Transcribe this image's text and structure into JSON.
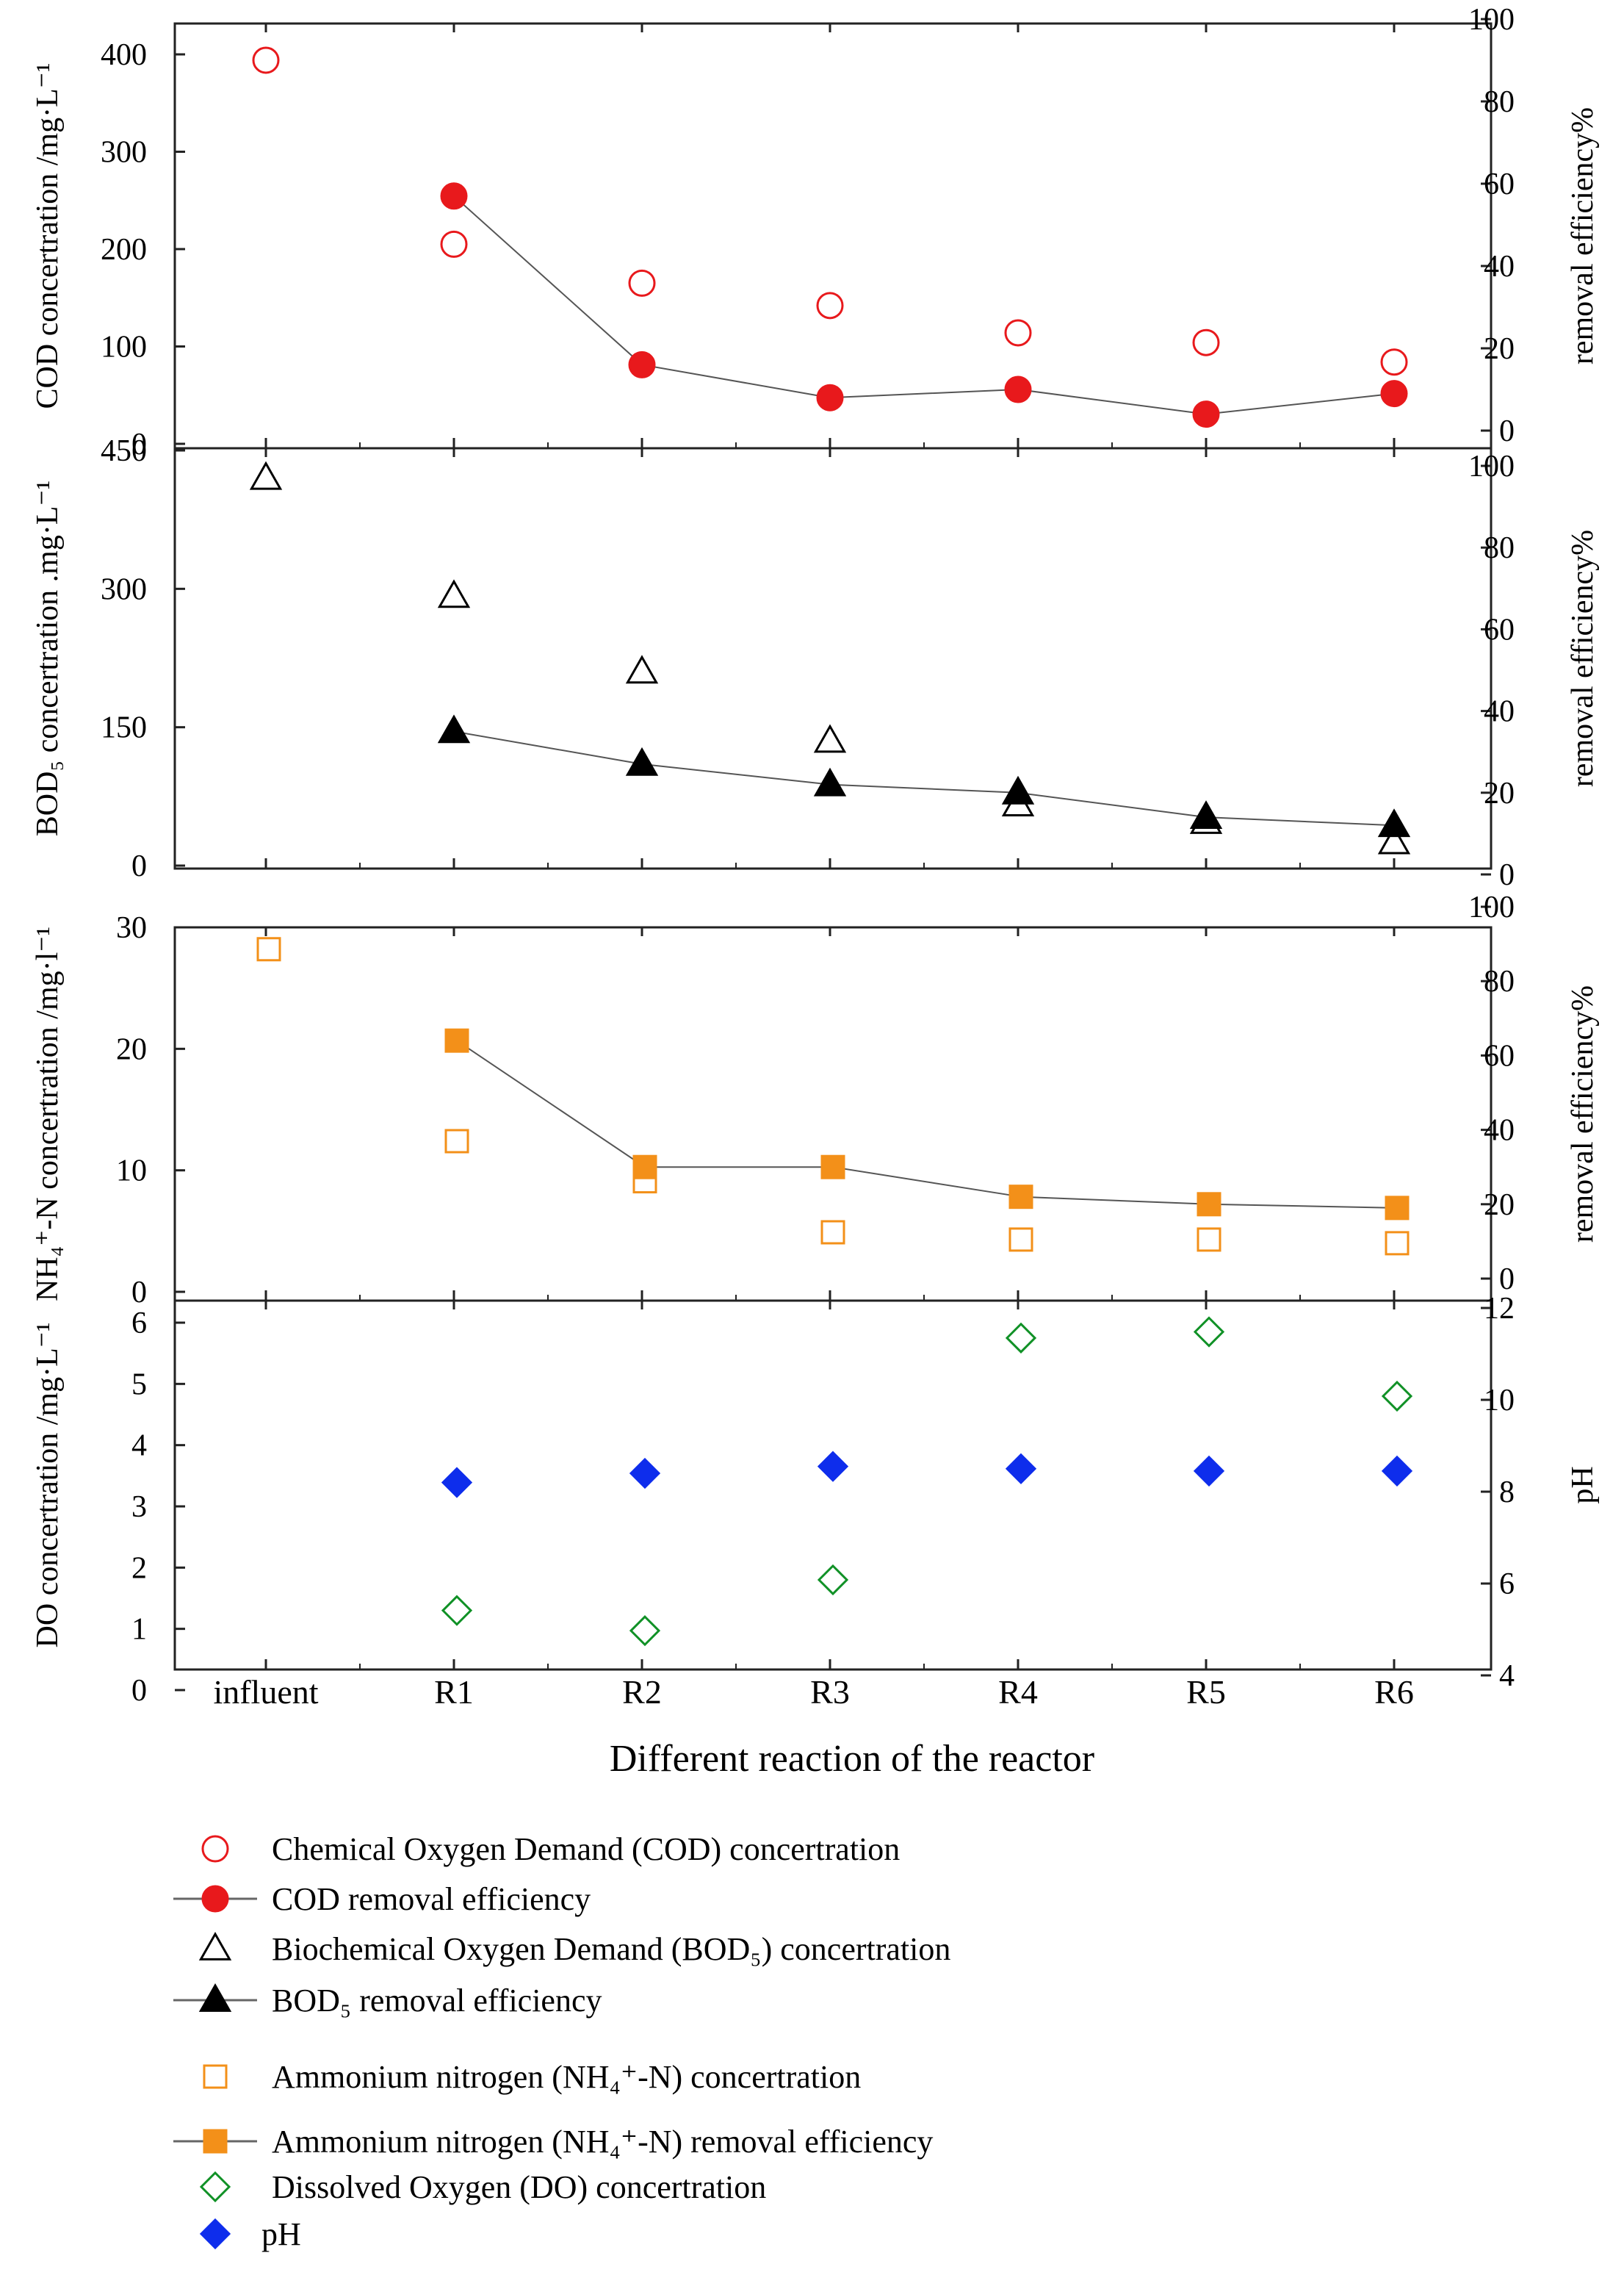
{
  "chart_data": {
    "type": "multi-panel scatter/line",
    "categories": [
      "influent",
      "R1",
      "R2",
      "R3",
      "R4",
      "R5",
      "R6"
    ],
    "xlabel": "Different reaction of the reactor",
    "panels": [
      {
        "id": "cod",
        "left_axis": {
          "label": "COD concertration /mg·L⁻¹",
          "range": [
            0,
            450
          ],
          "ticks": [
            0,
            100,
            200,
            300,
            400
          ]
        },
        "right_axis": {
          "label": "removal efficiency%",
          "range": [
            0,
            100
          ],
          "ticks": [
            0,
            20,
            40,
            60,
            80,
            100
          ]
        },
        "series": [
          {
            "name": "Chemical Oxygen Demand (COD) concertration",
            "axis": "left",
            "marker": "circle-open",
            "color": "#e8191c",
            "line": false,
            "values": [
              394,
              205,
              165,
              142,
              114,
              104,
              84
            ]
          },
          {
            "name": "COD removal efficiency",
            "axis": "right",
            "marker": "circle-filled",
            "color": "#e8191c",
            "line": true,
            "values": [
              null,
              57,
              16,
              8,
              10,
              4,
              9
            ]
          }
        ]
      },
      {
        "id": "bod",
        "left_axis": {
          "label": "BOD₅ concertration .mg·L⁻¹",
          "range": [
            0,
            450
          ],
          "ticks": [
            0,
            150,
            300,
            450
          ]
        },
        "right_axis": {
          "label": "removal efficiency%",
          "range": [
            0,
            100
          ],
          "ticks": [
            0,
            20,
            40,
            60,
            80,
            100
          ]
        },
        "series": [
          {
            "name": "Biochemical Oxygen Demand (BOD₅) concertration",
            "axis": "left",
            "marker": "triangle-open",
            "color": "#000000",
            "line": false,
            "values": [
              420,
              292,
              210,
              135,
              66,
              47,
              25
            ]
          },
          {
            "name": "BOD₅ removal efficiency",
            "axis": "right",
            "marker": "triangle-filled",
            "color": "#000000",
            "line": true,
            "values": [
              null,
              35,
              27,
              22,
              20,
              14,
              12
            ]
          }
        ]
      },
      {
        "id": "nh4",
        "left_axis": {
          "label": "NH₄⁺-N concertration /mg·l⁻¹",
          "range": [
            0,
            30
          ],
          "ticks": [
            0,
            10,
            20,
            30
          ]
        },
        "right_axis": {
          "label": "removal efficiency%",
          "range": [
            0,
            100
          ],
          "ticks": [
            0,
            20,
            40,
            60,
            80,
            100
          ]
        },
        "series": [
          {
            "name": "Ammonium nitrogen (NH₄⁺-N) concertration",
            "axis": "left",
            "marker": "square-open",
            "color": "#f39019",
            "line": false,
            "values": [
              28.2,
              12.4,
              9.1,
              4.9,
              4.3,
              4.3,
              4.0
            ]
          },
          {
            "name": "Ammonium nitrogen (NH₄⁺-N) removal efficiency",
            "axis": "right",
            "marker": "square-filled",
            "color": "#f39019",
            "line": true,
            "values": [
              null,
              64,
              30,
              30,
              22,
              20,
              19
            ]
          }
        ]
      },
      {
        "id": "do",
        "left_axis": {
          "label": "DO concertration /mg·L⁻¹",
          "range": [
            0,
            6.5
          ],
          "ticks": [
            0,
            1,
            2,
            3,
            4,
            5,
            6
          ]
        },
        "right_axis": {
          "label": "pH",
          "range": [
            4,
            12
          ],
          "ticks": [
            4,
            6,
            8,
            10,
            12
          ]
        },
        "series": [
          {
            "name": "Dissolved Oxygen (DO) concertration",
            "axis": "left",
            "marker": "diamond-open",
            "color": "#109126",
            "line": false,
            "values": [
              null,
              1.3,
              0.97,
              1.8,
              5.75,
              5.85,
              4.8
            ]
          },
          {
            "name": "pH",
            "axis": "right",
            "marker": "diamond-filled",
            "color": "#0e2dec",
            "line": false,
            "values": [
              null,
              8.2,
              8.4,
              8.55,
              8.5,
              8.45,
              8.45
            ]
          }
        ]
      }
    ],
    "legend": {
      "placement": "bottom",
      "entries": [
        {
          "text": "Chemical Oxygen Demand (COD) concertration",
          "marker": "circle-open",
          "color": "#e8191c",
          "line": false
        },
        {
          "text": "COD removal efficiency",
          "marker": "circle-filled",
          "color": "#e8191c",
          "line": true
        },
        {
          "text": "Biochemical Oxygen Demand (BOD₅) concertration",
          "marker": "triangle-open",
          "color": "#000000",
          "line": false
        },
        {
          "text": "BOD₅ removal efficiency",
          "marker": "triangle-filled",
          "color": "#000000",
          "line": true
        },
        {
          "text": "Ammonium nitrogen (NH₄⁺-N) concertration",
          "marker": "square-open",
          "color": "#f39019",
          "line": false
        },
        {
          "text": "Ammonium nitrogen (NH₄⁺-N) removal efficiency",
          "marker": "square-filled",
          "color": "#f39019",
          "line": true
        },
        {
          "text": "Dissolved Oxygen (DO) concertration",
          "marker": "diamond-open",
          "color": "#109126",
          "line": false
        },
        {
          "text": "pH",
          "marker": "diamond-filled",
          "color": "#0e2dec",
          "line": false
        }
      ]
    }
  }
}
